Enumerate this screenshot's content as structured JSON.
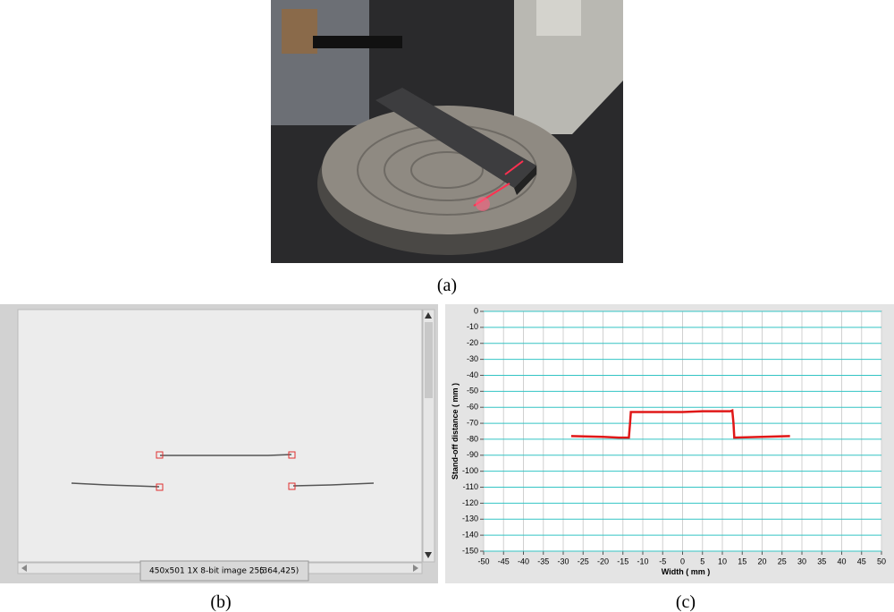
{
  "captions": [
    "(a)",
    "(b)",
    "(c)"
  ],
  "viewer": {
    "status": "450x501 1X 8-bit image 255",
    "coords": "(364,425)"
  },
  "chart_data": {
    "type": "line",
    "x_label": "Width ( mm )",
    "y_label": "Stand-off distance ( mm )",
    "x": [
      -28,
      -20,
      -16,
      -13.5,
      -13.2,
      -13,
      -5,
      0,
      5,
      12,
      12.5,
      12.8,
      13,
      20,
      27
    ],
    "values": [
      -78,
      -78.5,
      -79,
      -79,
      -70,
      -63,
      -63,
      -63,
      -62.5,
      -62.5,
      -62,
      -70,
      -79,
      -78.5,
      -78
    ],
    "color": "#e01818",
    "xlim": [
      -50,
      50
    ],
    "xticks": [
      -50,
      -45,
      -40,
      -35,
      -30,
      -25,
      -20,
      -15,
      -10,
      -5,
      0,
      5,
      10,
      15,
      20,
      25,
      30,
      35,
      40,
      45,
      50
    ],
    "ylim": [
      -150,
      0
    ],
    "yticks": [
      0,
      -10,
      -20,
      -30,
      -40,
      -50,
      -60,
      -70,
      -80,
      -90,
      -100,
      -110,
      -120,
      -130,
      -140,
      -150
    ],
    "grid": true,
    "grid_color": "#33c4c4"
  }
}
